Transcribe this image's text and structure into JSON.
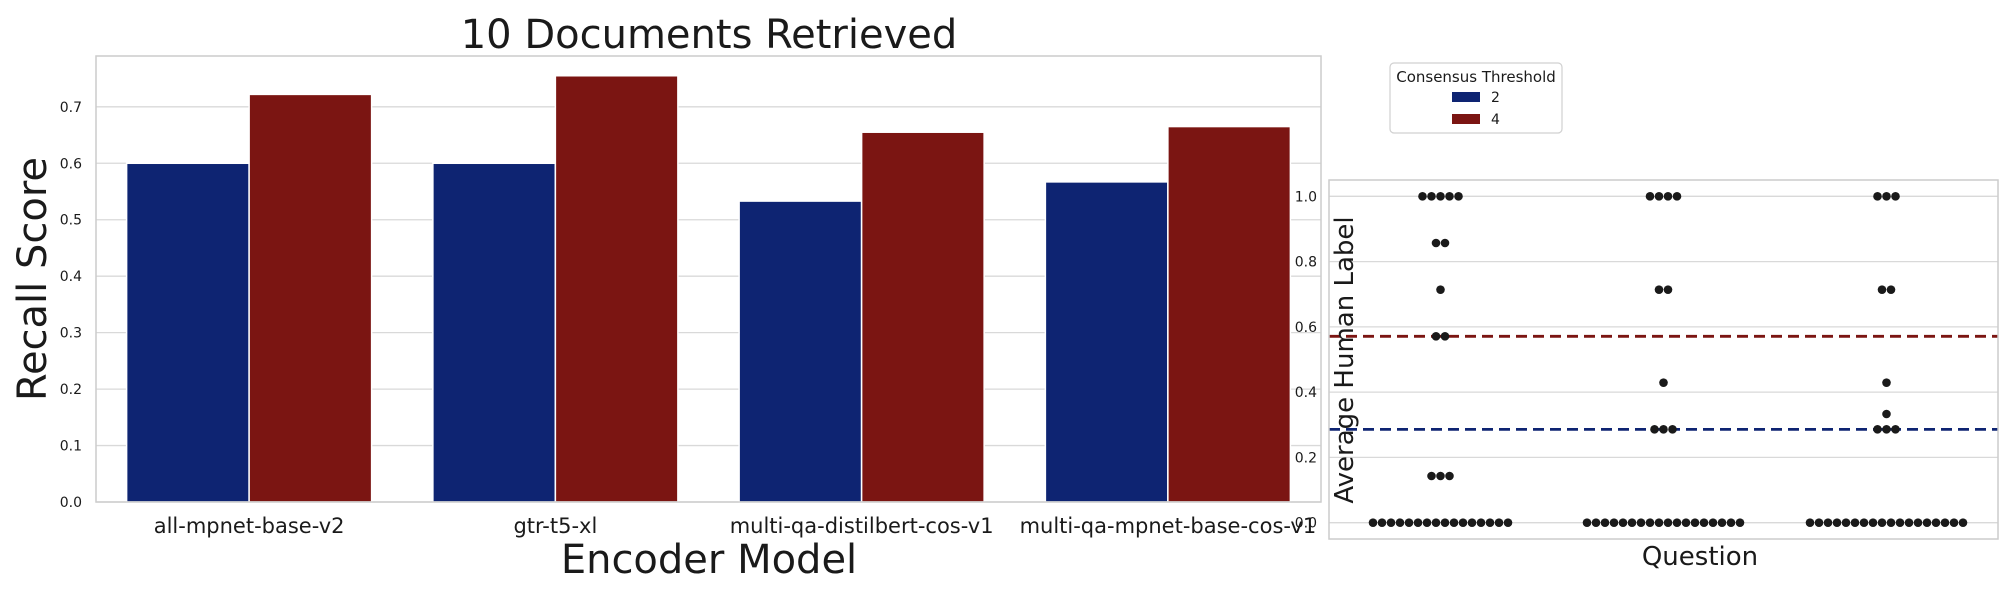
{
  "chart_data": [
    {
      "type": "bar",
      "title": "10 Documents Retrieved",
      "xlabel": "Encoder Model",
      "ylabel": "Recall Score",
      "ylim": [
        0,
        0.79
      ],
      "yticks": [
        "0.0",
        "0.1",
        "0.2",
        "0.3",
        "0.4",
        "0.5",
        "0.6",
        "0.7"
      ],
      "grid": true,
      "categories": [
        "all-mpnet-base-v2",
        "gtr-t5-xl",
        "multi-qa-distilbert-cos-v1",
        "multi-qa-mpnet-base-cos-v1"
      ],
      "series": [
        {
          "name": "2",
          "color": "#0e2472",
          "values": [
            0.6,
            0.6,
            0.533,
            0.567
          ]
        },
        {
          "name": "4",
          "color": "#7b1512",
          "values": [
            0.722,
            0.755,
            0.655,
            0.665
          ]
        }
      ]
    },
    {
      "type": "scatter",
      "xlabel": "Question",
      "ylabel": "Average Human Label",
      "ylim": [
        -0.05,
        1.05
      ],
      "yticks": [
        "0.0",
        "0.2",
        "0.4",
        "0.6",
        "0.8",
        "1.0"
      ],
      "grid": true,
      "legend": {
        "title": "Consensus Threshold",
        "placement": "top-left",
        "entries": [
          {
            "label": "2",
            "color": "#0e2472"
          },
          {
            "label": "4",
            "color": "#7b1512"
          }
        ]
      },
      "thresholds": [
        {
          "value": 0.571,
          "color": "#7b1512",
          "style": "dashed"
        },
        {
          "value": 0.286,
          "color": "#0e2472",
          "style": "dashed"
        }
      ],
      "groups": [
        {
          "points": [
            {
              "y": 1.0,
              "count": 5
            },
            {
              "y": 0.857,
              "count": 2
            },
            {
              "y": 0.714,
              "count": 1
            },
            {
              "y": 0.571,
              "count": 2
            },
            {
              "y": 0.143,
              "count": 3
            },
            {
              "y": 0.0,
              "count": 16
            }
          ]
        },
        {
          "points": [
            {
              "y": 1.0,
              "count": 4
            },
            {
              "y": 0.714,
              "count": 2
            },
            {
              "y": 0.429,
              "count": 1
            },
            {
              "y": 0.286,
              "count": 3
            },
            {
              "y": 0.0,
              "count": 18
            }
          ]
        },
        {
          "points": [
            {
              "y": 1.0,
              "count": 3
            },
            {
              "y": 0.714,
              "count": 2
            },
            {
              "y": 0.429,
              "count": 1
            },
            {
              "y": 0.333,
              "count": 1
            },
            {
              "y": 0.286,
              "count": 3
            },
            {
              "y": 0.0,
              "count": 18
            }
          ]
        }
      ]
    }
  ]
}
